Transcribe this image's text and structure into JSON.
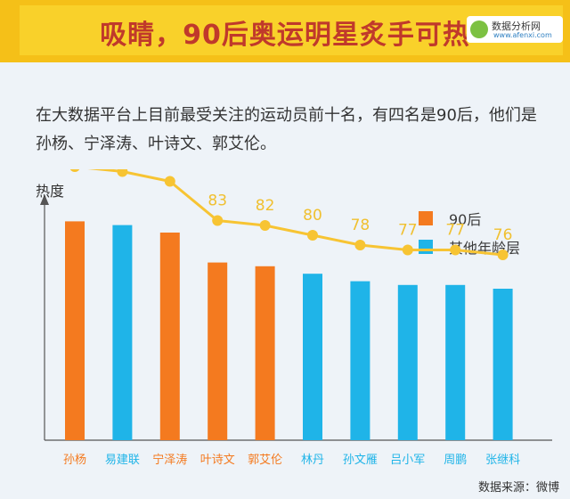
{
  "header": {
    "title": "吸睛，90后奥运明星炙手可热",
    "logo_name": "数据分析网",
    "logo_site": "www.afenxi.com"
  },
  "intro": "在大数据平台上目前最受关注的运动员前十名，有四名是90后，他们是孙杨、宁泽涛、叶诗文、郭艾伦。",
  "source": "数据来源：微博",
  "colors": {
    "post90": "#f47a1f",
    "other": "#1fb4e8",
    "line": "#f7c433",
    "label": "#f0c030"
  },
  "chart_data": {
    "type": "bar",
    "ylabel": "热度",
    "categories": [
      "孙杨",
      "易建联",
      "宁泽涛",
      "叶诗文",
      "郭艾伦",
      "林丹",
      "孙文雁",
      "吕小军",
      "周鹏",
      "张继科"
    ],
    "values": [
      94,
      93,
      91,
      83,
      82,
      80,
      78,
      77,
      77,
      76
    ],
    "groups": [
      "90后",
      "其他年龄层",
      "90后",
      "90后",
      "90后",
      "其他年龄层",
      "其他年龄层",
      "其他年龄层",
      "其他年龄层",
      "其他年龄层"
    ],
    "legend": [
      {
        "name": "90后",
        "color": "#f47a1f"
      },
      {
        "name": "其他年龄层",
        "color": "#1fb4e8"
      }
    ],
    "legend_position": "top-right",
    "line_overlay": true,
    "data_labels": true,
    "grid": false
  }
}
